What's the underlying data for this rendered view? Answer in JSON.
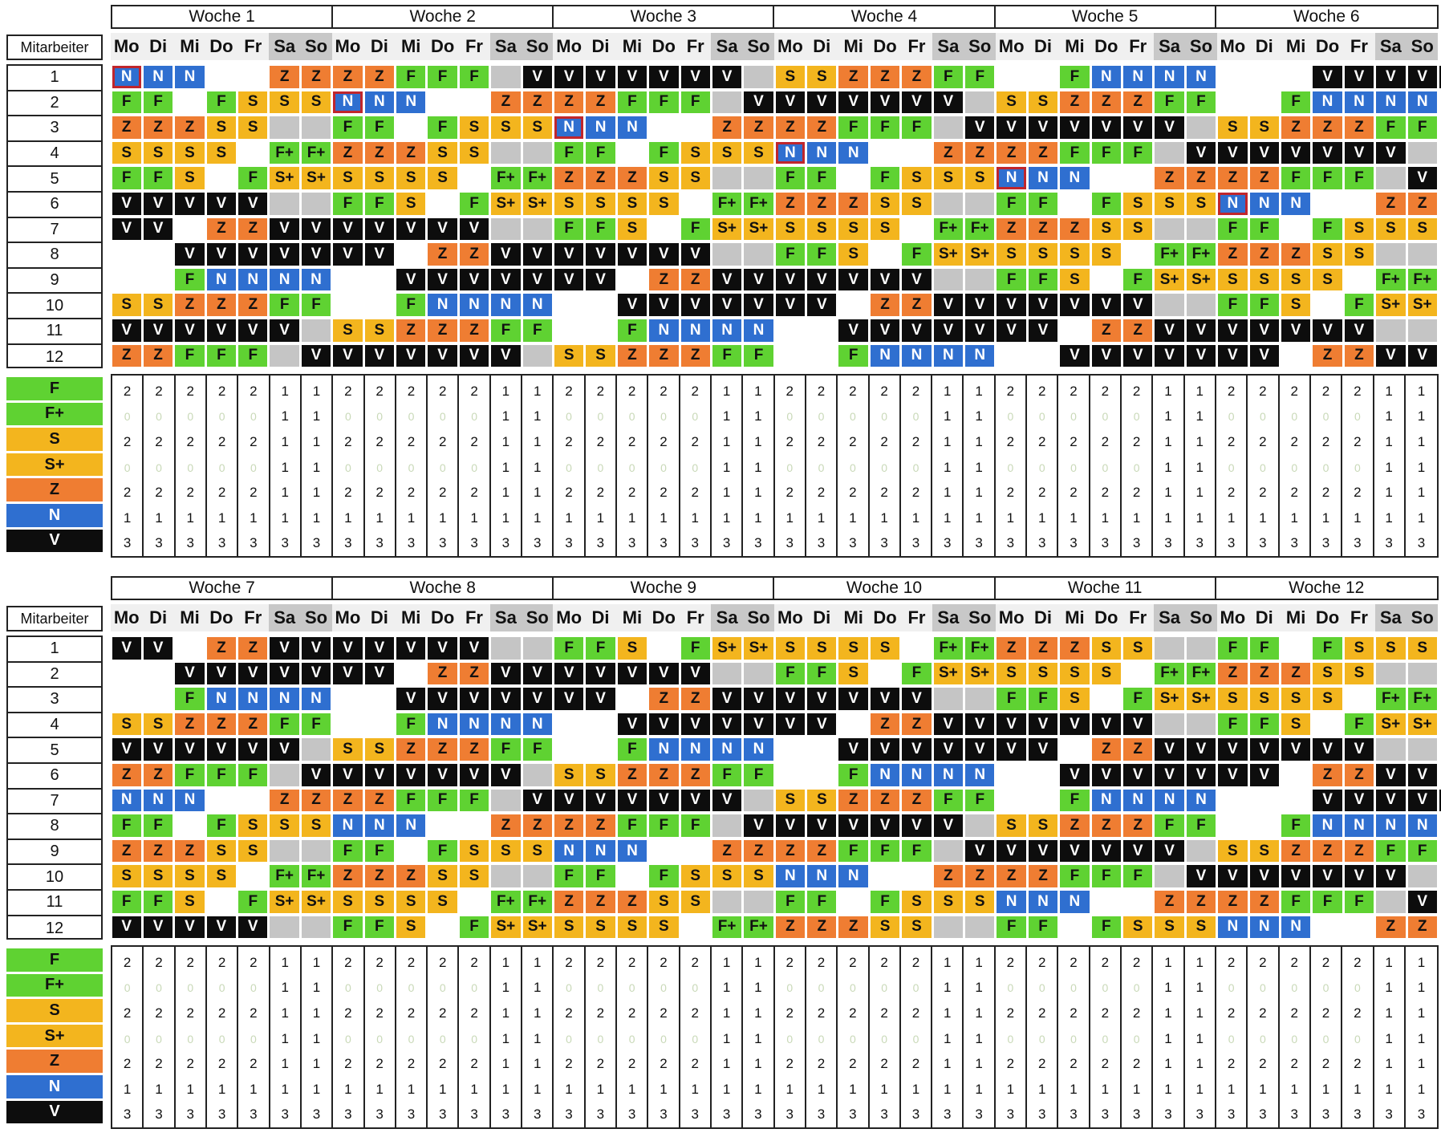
{
  "mitarbeiter_label": "Mitarbeiter",
  "days": [
    "Mo",
    "Di",
    "Mi",
    "Do",
    "Fr",
    "Sa",
    "So"
  ],
  "employees": [
    "1",
    "2",
    "3",
    "4",
    "5",
    "6",
    "7",
    "8",
    "9",
    "10",
    "11",
    "12"
  ],
  "colors": {
    "F": "#5fd232",
    "F+": "#5fd232",
    "S": "#f3b51e",
    "S+": "#f3b51e",
    "Z": "#ef7d32",
    "N": "#2f6fd0",
    "V": "#0d0d0d",
    "empty": "#ffffff",
    "grey": "#c5c5c5",
    "highlight": "#c0262c"
  },
  "shift_types": [
    "F",
    "F+",
    "S",
    "S+",
    "Z",
    "N",
    "V"
  ],
  "counts_week_pattern": [
    [
      "2",
      "2",
      "2",
      "2",
      "2",
      "1",
      "1"
    ],
    [
      "0",
      "0",
      "0",
      "0",
      "0",
      "1",
      "1"
    ],
    [
      "2",
      "2",
      "2",
      "2",
      "2",
      "1",
      "1"
    ],
    [
      "0",
      "0",
      "0",
      "0",
      "0",
      "1",
      "1"
    ],
    [
      "2",
      "2",
      "2",
      "2",
      "2",
      "1",
      "1"
    ],
    [
      "1",
      "1",
      "1",
      "1",
      "1",
      "1",
      "1"
    ],
    [
      "3",
      "3",
      "3",
      "3",
      "3",
      "3",
      "3"
    ]
  ],
  "blocks": [
    {
      "weeks": [
        "Woche 1",
        "Woche 2",
        "Woche 3",
        "Woche 4",
        "Woche 5",
        "Woche 6"
      ],
      "rows": [
        "N|N|N|.|.|Z|Z|Z|Z|F|F|F|g|V|V|V|V|V|V|V|g|S|S|Z|Z|Z|F|F|.|.|F|N|N|N|N|.|.|.|V|V|V|V|V",
        "F|F|.|F|S|S|S|N|N|N|.|.|Z|Z|Z|Z|F|F|F|g|V|V|V|V|V|V|V|g|S|S|Z|Z|Z|F|F|.|.|F|N|N|N|N",
        "Z|Z|Z|S|S|g|g|F|F|.|F|S|S|S|N|N|N|.|.|Z|Z|Z|Z|F|F|F|g|V|V|V|V|V|V|V|g|S|S|Z|Z|Z|F|F",
        "S|S|S|S|.|F+|F+|Z|Z|Z|S|S|g|g|F|F|.|F|S|S|S|N|N|N|.|.|Z|Z|Z|Z|F|F|F|g|V|V|V|V|V|V|V|g",
        "F|F|S|.|F|S+|S+|S|S|S|S|.|F+|F+|Z|Z|Z|S|S|g|g|F|F|.|F|S|S|S|N|N|N|.|.|Z|Z|Z|Z|F|F|F|g|V",
        "V|V|V|V|V|g|g|F|F|S|.|F|S+|S+|S|S|S|S|.|F+|F+|Z|Z|Z|S|S|g|g|F|F|.|F|S|S|S|N|N|N|.|.|Z|Z",
        "V|V|.|Z|Z|V|V|V|V|V|V|V|g|g|F|F|S|.|F|S+|S+|S|S|S|S|.|F+|F+|Z|Z|Z|S|S|g|g|F|F|.|F|S|S|S",
        ".|.|V|V|V|V|V|V|V|.|Z|Z|V|V|V|V|V|V|V|g|g|F|F|S|.|F|S+|S+|S|S|S|S|.|F+|F+|Z|Z|Z|S|S|g|g",
        ".|.|F|N|N|N|N|.|.|V|V|V|V|V|V|V|.|Z|Z|V|V|V|V|V|V|V|g|g|F|F|S|.|F|S+|S+|S|S|S|S|.|F+|F+",
        "S|S|Z|Z|Z|F|F|.|.|F|N|N|N|N|.|.|V|V|V|V|V|V|V|.|Z|Z|V|V|V|V|V|V|V|g|g|F|F|S|.|F|S+|S+",
        "V|V|V|V|V|V|g|S|S|Z|Z|Z|F|F|.|.|F|N|N|N|N|.|.|V|V|V|V|V|V|V|.|Z|Z|V|V|V|V|V|V|V|g|g",
        "Z|Z|F|F|F|g|V|V|V|V|V|V|V|g|S|S|Z|Z|Z|F|F|.|.|F|N|N|N|N|.|.|V|V|V|V|V|V|V|.|Z|Z|V|V"
      ]
    },
    {
      "weeks": [
        "Woche 7",
        "Woche 8",
        "Woche 9",
        "Woche 10",
        "Woche 11",
        "Woche 12"
      ],
      "rows": [
        "V|V|.|Z|Z|V|V|V|V|V|V|V|g|g|F|F|S|.|F|S+|S+|S|S|S|S|.|F+|F+|Z|Z|Z|S|S|g|g|F|F|.|F|S|S|S",
        ".|.|V|V|V|V|V|V|V|.|Z|Z|V|V|V|V|V|V|V|g|g|F|F|S|.|F|S+|S+|S|S|S|S|.|F+|F+|Z|Z|Z|S|S|g|g",
        ".|.|F|N|N|N|N|.|.|V|V|V|V|V|V|V|.|Z|Z|V|V|V|V|V|V|V|g|g|F|F|S|.|F|S+|S+|S|S|S|S|.|F+|F+",
        "S|S|Z|Z|Z|F|F|.|.|F|N|N|N|N|.|.|V|V|V|V|V|V|V|.|Z|Z|V|V|V|V|V|V|V|g|g|F|F|S|.|F|S+|S+",
        "V|V|V|V|V|V|g|S|S|Z|Z|Z|F|F|.|.|F|N|N|N|N|.|.|V|V|V|V|V|V|V|.|Z|Z|V|V|V|V|V|V|V|g|g",
        "Z|Z|F|F|F|g|V|V|V|V|V|V|V|g|S|S|Z|Z|Z|F|F|.|.|F|N|N|N|N|.|.|V|V|V|V|V|V|V|.|Z|Z|V|V",
        "N|N|N|.|.|Z|Z|Z|Z|F|F|F|g|V|V|V|V|V|V|V|g|S|S|Z|Z|Z|F|F|.|.|F|N|N|N|N|.|.|.|V|V|V|V|V",
        "F|F|.|F|S|S|S|N|N|N|.|.|Z|Z|Z|Z|F|F|F|g|V|V|V|V|V|V|V|g|S|S|Z|Z|Z|F|F|.|.|F|N|N|N|N",
        "Z|Z|Z|S|S|g|g|F|F|.|F|S|S|S|N|N|N|.|.|Z|Z|Z|Z|F|F|F|g|V|V|V|V|V|V|V|g|S|S|Z|Z|Z|F|F",
        "S|S|S|S|.|F+|F+|Z|Z|Z|S|S|g|g|F|F|.|F|S|S|S|N|N|N|.|.|Z|Z|Z|Z|F|F|F|g|V|V|V|V|V|V|V|g",
        "F|F|S|.|F|S+|S+|S|S|S|S|.|F+|F+|Z|Z|Z|S|S|g|g|F|F|.|F|S|S|S|N|N|N|.|.|Z|Z|Z|Z|F|F|F|g|V",
        "V|V|V|V|V|g|g|F|F|S|.|F|S+|S+|S|S|S|S|.|F+|F+|Z|Z|Z|S|S|g|g|F|F|.|F|S|S|S|N|N|N|.|.|Z|Z"
      ]
    }
  ]
}
